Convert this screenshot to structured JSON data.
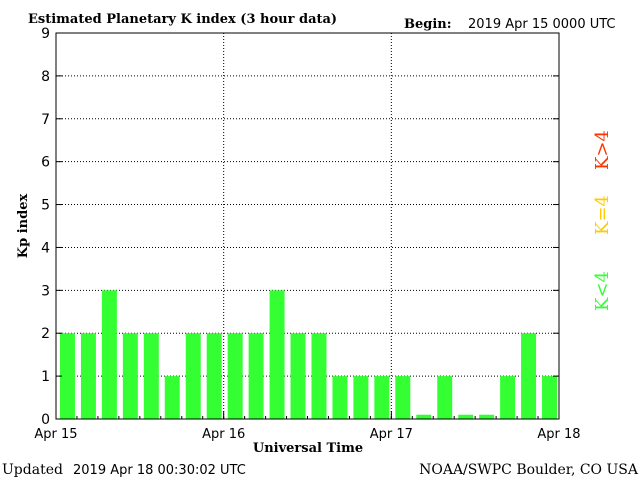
{
  "header": {
    "title": "Estimated Planetary K index (3 hour data)",
    "begin_label": "Begin:",
    "begin_value": "2019 Apr 15 0000 UTC"
  },
  "footer": {
    "updated_label": "Updated",
    "updated_value": "2019 Apr 18 00:30:02 UTC",
    "source": "NOAA/SWPC Boulder, CO USA"
  },
  "legend": [
    {
      "label": "K>4",
      "color": "#ff3300"
    },
    {
      "label": "K=4",
      "color": "#ffcc00"
    },
    {
      "label": "K<4",
      "color": "#33ff33"
    }
  ],
  "chart_data": {
    "type": "bar",
    "title": "Estimated Planetary K index (3 hour data)",
    "xlabel": "Universal Time",
    "ylabel": "Kp index",
    "ylim": [
      0,
      9
    ],
    "y_ticks": [
      "0",
      "1",
      "2",
      "3",
      "4",
      "5",
      "6",
      "7",
      "8",
      "9"
    ],
    "x_ticks": [
      "Apr 15",
      "Apr 16",
      "Apr 17",
      "Apr 18"
    ],
    "grid": true,
    "bar_color": "#33ff33",
    "values": [
      2,
      2,
      3,
      2,
      2,
      1,
      2,
      2,
      2,
      2,
      3,
      2,
      2,
      1,
      1,
      1,
      1,
      0.1,
      1,
      0.1,
      0.1,
      1,
      2,
      1
    ]
  }
}
